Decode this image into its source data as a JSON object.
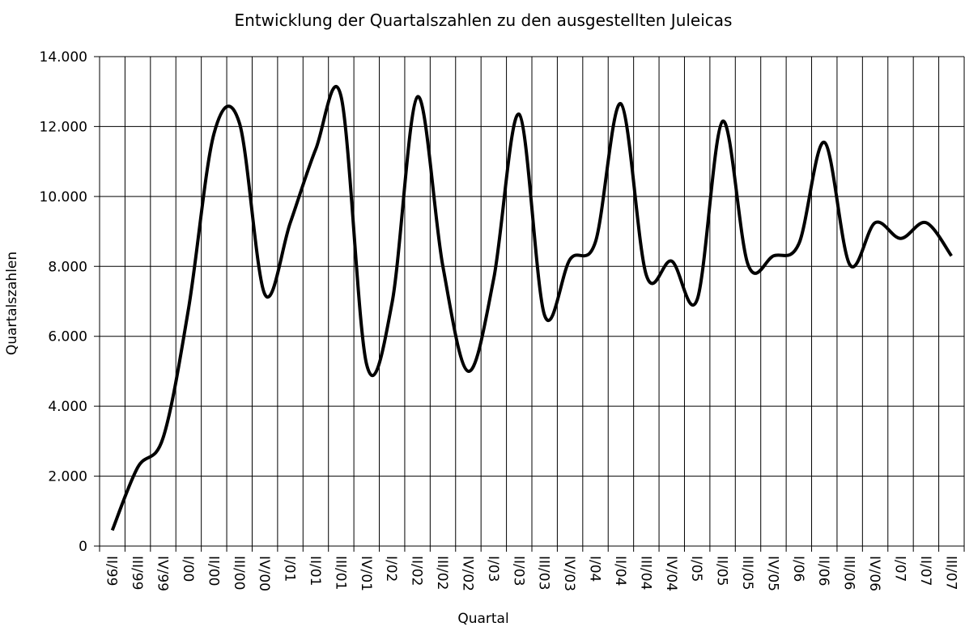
{
  "chart_data": {
    "type": "line",
    "title": "Entwicklung der Quartalszahlen zu den ausgestellten Juleicas",
    "x_label": "Quartal",
    "y_label": "Quartalszahlen",
    "categories": [
      "II/99",
      "III/99",
      "IV/99",
      "I/00",
      "II/00",
      "III/00",
      "IV/00",
      "I/01",
      "II/01",
      "III/01",
      "IV/01",
      "I/02",
      "II/02",
      "III/02",
      "IV/02",
      "I/03",
      "II/03",
      "III/03",
      "IV/03",
      "I/04",
      "II/04",
      "III/04",
      "IV/04",
      "I/05",
      "II/05",
      "III/05",
      "IV/05",
      "I/06",
      "II/06",
      "III/06",
      "IV/06",
      "I/07",
      "II/07",
      "III/07"
    ],
    "series": [
      {
        "name": "Quartalszahlen",
        "color": "#000000",
        "values": [
          450,
          2250,
          3100,
          6800,
          11800,
          12100,
          7200,
          9250,
          11350,
          12850,
          5200,
          6950,
          12850,
          8000,
          5000,
          7650,
          12350,
          6600,
          8200,
          8700,
          12650,
          7750,
          8150,
          7050,
          12150,
          8050,
          8300,
          8650,
          11550,
          8050,
          9250,
          8800,
          9250,
          8300
        ]
      }
    ],
    "ylim": [
      0,
      14000
    ],
    "yticks": [
      0,
      {
        "value": 2000,
        "label": "2.000"
      },
      {
        "value": 4000,
        "label": "4.000"
      },
      {
        "value": 6000,
        "label": "6.000"
      },
      {
        "value": 8000,
        "label": "8.000"
      },
      {
        "value": 10000,
        "label": "10.000"
      },
      {
        "value": 12000,
        "label": "12.000"
      },
      {
        "value": 14000,
        "label": "14.000"
      }
    ],
    "grid": true,
    "smooth": true
  }
}
